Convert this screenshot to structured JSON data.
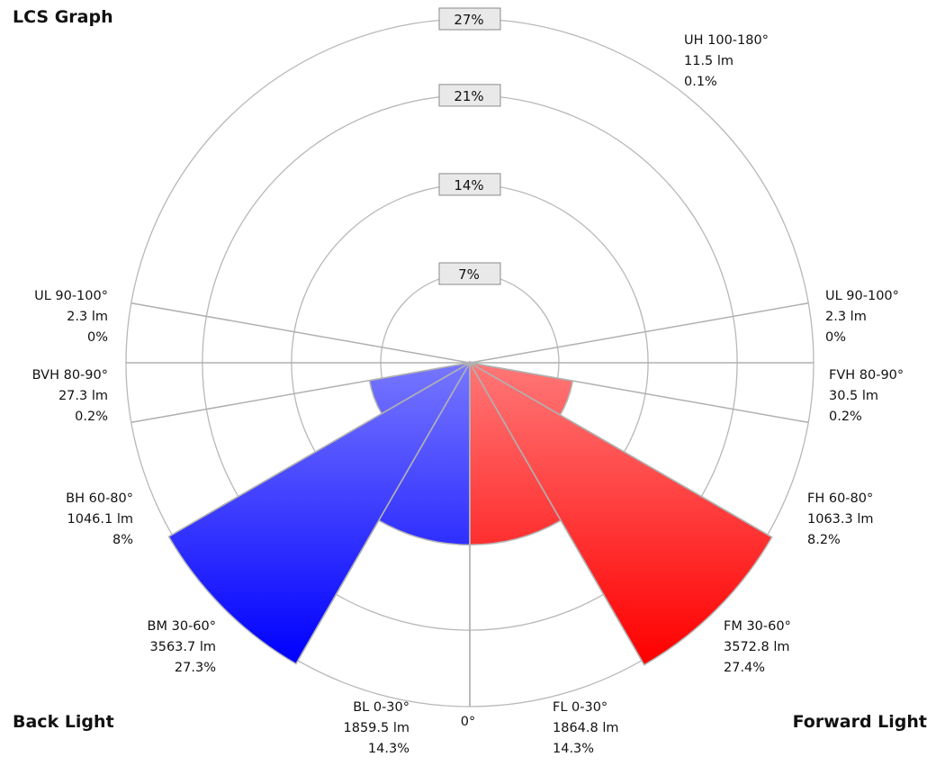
{
  "chart_data": {
    "type": "polar-bar",
    "title": "LCS Graph",
    "side_labels": {
      "back": "Back Light",
      "forward": "Forward Light"
    },
    "bottom_label": "0°",
    "rings": [
      "7%",
      "14%",
      "21%",
      "27%"
    ],
    "ring_values": [
      7,
      14,
      21,
      27
    ],
    "rmax": 27,
    "colors": {
      "back_light": "#7777ff",
      "back_dark": "#0000ff",
      "forward_light": "#ff7777",
      "forward_dark": "#ff0000"
    },
    "zones": [
      {
        "name": "BL 0-30°",
        "lumens": "1859.5 lm",
        "percent": "14.3%",
        "value": 14.3,
        "side": "back",
        "from": 0,
        "to": 30
      },
      {
        "name": "BM 30-60°",
        "lumens": "3563.7 lm",
        "percent": "27.3%",
        "value": 27.3,
        "side": "back",
        "from": 30,
        "to": 60
      },
      {
        "name": "BH 60-80°",
        "lumens": "1046.1 lm",
        "percent": "8%",
        "value": 8,
        "side": "back",
        "from": 60,
        "to": 80
      },
      {
        "name": "BVH 80-90°",
        "lumens": "27.3 lm",
        "percent": "0.2%",
        "value": 0.2,
        "side": "back",
        "from": 80,
        "to": 90
      },
      {
        "name": "UL 90-100°",
        "lumens": "2.3 lm",
        "percent": "0%",
        "value": 0,
        "side": "back",
        "from": 90,
        "to": 100
      },
      {
        "name": "FL 0-30°",
        "lumens": "1864.8 lm",
        "percent": "14.3%",
        "value": 14.3,
        "side": "forward",
        "from": 0,
        "to": 30
      },
      {
        "name": "FM 30-60°",
        "lumens": "3572.8 lm",
        "percent": "27.4%",
        "value": 27.4,
        "side": "forward",
        "from": 30,
        "to": 60
      },
      {
        "name": "FH 60-80°",
        "lumens": "1063.3 lm",
        "percent": "8.2%",
        "value": 8.2,
        "side": "forward",
        "from": 60,
        "to": 80
      },
      {
        "name": "FVH 80-90°",
        "lumens": "30.5 lm",
        "percent": "0.2%",
        "value": 0.2,
        "side": "forward",
        "from": 80,
        "to": 90
      },
      {
        "name": "UL 90-100°",
        "lumens": "2.3 lm",
        "percent": "0%",
        "value": 0,
        "side": "forward",
        "from": 90,
        "to": 100
      },
      {
        "name": "UH 100-180°",
        "lumens": "11.5 lm",
        "percent": "0.1%",
        "value": 0.1,
        "side": "top",
        "from": 100,
        "to": 180
      }
    ]
  }
}
